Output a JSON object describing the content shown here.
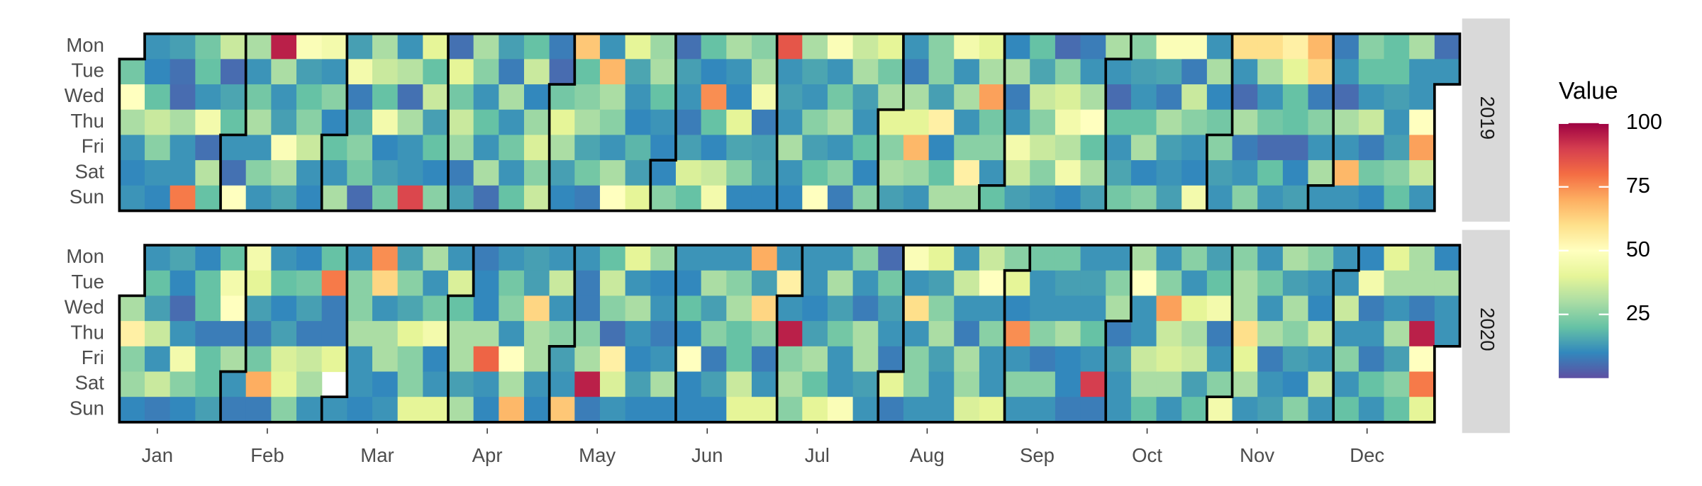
{
  "chart_data": {
    "type": "calendar-heatmap",
    "weekdays": [
      "Mon",
      "Tue",
      "Wed",
      "Thu",
      "Fri",
      "Sat",
      "Sun"
    ],
    "months": [
      "Jan",
      "Feb",
      "Mar",
      "Apr",
      "May",
      "Jun",
      "Jul",
      "Aug",
      "Sep",
      "Oct",
      "Nov",
      "Dec"
    ],
    "legend_title": "Value",
    "legend_lim": [
      0,
      100
    ],
    "legend_ticks": [
      25,
      50,
      75,
      100
    ],
    "colors": [
      "#5E4FA2",
      "#3288BD",
      "#66C2A5",
      "#ABDDA4",
      "#E6F598",
      "#FFFFBF",
      "#FEE08B",
      "#FDAE61",
      "#F46D43",
      "#D53E4F",
      "#9E0142"
    ],
    "series": [
      {
        "name": "2019",
        "values": [
          22,
          50,
          30,
          12,
          10,
          12,
          12,
          10,
          20,
          35,
          25,
          12,
          10,
          14,
          6,
          5,
          30,
          12,
          12,
          78,
          22,
          20,
          12,
          45,
          6,
          32,
          20,
          35,
          5,
          15,
          20,
          12,
          6,
          50,
          30,
          12,
          22,
          30,
          12,
          25,
          12,
          95,
          30,
          12,
          14,
          48,
          30,
          15,
          48,
          14,
          20,
          25,
          35,
          12,
          10,
          45,
          12,
          25,
          10,
          20,
          12,
          30,
          14,
          45,
          8,
          18,
          25,
          22,
          5,
          30,
          35,
          20,
          45,
          10,
          14,
          22,
          12,
          32,
          6,
          30,
          12,
          12,
          88,
          40,
          20,
          35,
          14,
          20,
          10,
          25,
          6,
          40,
          22,
          35,
          28,
          8,
          14,
          30,
          25,
          12,
          20,
          12,
          30,
          6,
          14,
          8,
          30,
          12,
          22,
          12,
          20,
          20,
          35,
          10,
          28,
          38,
          25,
          35,
          8,
          5,
          22,
          40,
          30,
          14,
          10,
          65,
          20,
          25,
          30,
          15,
          22,
          8,
          12,
          68,
          30,
          25,
          12,
          30,
          50,
          40,
          15,
          12,
          10,
          18,
          14,
          40,
          28,
          30,
          20,
          12,
          10,
          10,
          25,
          6,
          14,
          12,
          8,
          14,
          38,
          20,
          20,
          10,
          75,
          20,
          10,
          35,
          45,
          30,
          12,
          10,
          40,
          15,
          25,
          10,
          25,
          30,
          45,
          8,
          14,
          15,
          10,
          85,
          12,
          14,
          12,
          30,
          12,
          10,
          30,
          15,
          12,
          25,
          14,
          20,
          50,
          48,
          12,
          22,
          30,
          12,
          25,
          8,
          35,
          30,
          14,
          12,
          20,
          10,
          25,
          40,
          22,
          30,
          40,
          25,
          30,
          14,
          12,
          8,
          30,
          40,
          68,
          28,
          12,
          25,
          25,
          14,
          55,
          10,
          20,
          30,
          45,
          12,
          30,
          12,
          25,
          55,
          30,
          40,
          30,
          72,
          22,
          25,
          12,
          20,
          10,
          30,
          8,
          12,
          45,
          35,
          14,
          20,
          15,
          35,
          25,
          35,
          25,
          12,
          5,
          25,
          38,
          45,
          32,
          45,
          10,
          8,
          12,
          30,
          50,
          20,
          30,
          14,
          30,
          12,
          5,
          20,
          12,
          15,
          22,
          25,
          14,
          12,
          20,
          30,
          10,
          25,
          48,
          15,
          8,
          30,
          14,
          12,
          14,
          48,
          8,
          35,
          25,
          12,
          10,
          45,
          12,
          30,
          10,
          22,
          25,
          14,
          12,
          60,
          12,
          5,
          30,
          8,
          12,
          25,
          60,
          30,
          12,
          22,
          5,
          20,
          12,
          55,
          40,
          20,
          20,
          5,
          10,
          14,
          68,
          62,
          8,
          25,
          12,
          30,
          12,
          8,
          12,
          5,
          30,
          12,
          68,
          12,
          25,
          20,
          12,
          35,
          8,
          22,
          10,
          20,
          20,
          14,
          12,
          14,
          25,
          20,
          30,
          12,
          12,
          50,
          72,
          35,
          12,
          6,
          12
        ]
      },
      {
        "name": "2020",
        "values": [
          30,
          55,
          25,
          28,
          10,
          12,
          20,
          14,
          35,
          12,
          35,
          8,
          15,
          10,
          5,
          12,
          45,
          25,
          10,
          10,
          20,
          20,
          8,
          20,
          20,
          14,
          20,
          45,
          50,
          8,
          30,
          12,
          8,
          45,
          40,
          14,
          8,
          22,
          70,
          8,
          12,
          20,
          10,
          14,
          38,
          40,
          25,
          10,
          22,
          14,
          8,
          35,
          30,
          12,
          20,
          78,
          8,
          8,
          40,
          null,
          12,
          12,
          25,
          25,
          30,
          12,
          12,
          10,
          75,
          62,
          12,
          30,
          30,
          10,
          12,
          14,
          25,
          15,
          40,
          25,
          25,
          40,
          30,
          12,
          22,
          45,
          10,
          12,
          40,
          12,
          38,
          20,
          30,
          30,
          14,
          30,
          8,
          10,
          10,
          30,
          82,
          12,
          10,
          12,
          22,
          25,
          12,
          50,
          30,
          68,
          14,
          14,
          62,
          30,
          30,
          12,
          10,
          12,
          35,
          12,
          25,
          14,
          12,
          65,
          12,
          8,
          8,
          25,
          30,
          95,
          8,
          20,
          35,
          25,
          6,
          55,
          38,
          12,
          40,
          12,
          30,
          12,
          10,
          14,
          10,
          28,
          10,
          12,
          8,
          12,
          30,
          10,
          12,
          10,
          20,
          10,
          50,
          10,
          10,
          12,
          30,
          14,
          25,
          8,
          14,
          10,
          12,
          25,
          30,
          20,
          20,
          35,
          40,
          70,
          14,
          62,
          25,
          8,
          12,
          40,
          12,
          55,
          12,
          95,
          25,
          30,
          25,
          12,
          12,
          10,
          14,
          30,
          20,
          40,
          12,
          30,
          14,
          22,
          12,
          12,
          48,
          25,
          12,
          8,
          30,
          30,
          14,
          12,
          5,
          22,
          14,
          12,
          8,
          40,
          8,
          48,
          12,
          60,
          12,
          25,
          25,
          12,
          40,
          14,
          25,
          30,
          14,
          12,
          12,
          12,
          35,
          12,
          8,
          30,
          28,
          38,
          35,
          50,
          12,
          25,
          12,
          12,
          40,
          25,
          40,
          10,
          75,
          12,
          25,
          12,
          22,
          12,
          12,
          25,
          8,
          25,
          12,
          22,
          14,
          12,
          30,
          10,
          10,
          8,
          12,
          14,
          12,
          20,
          12,
          90,
          8,
          12,
          25,
          30,
          8,
          14,
          12,
          12,
          30,
          50,
          12,
          12,
          35,
          30,
          20,
          12,
          25,
          72,
          35,
          38,
          30,
          12,
          25,
          12,
          40,
          30,
          35,
          14,
          20,
          14,
          20,
          45,
          8,
          12,
          25,
          45,
          25,
          30,
          30,
          60,
          40,
          30,
          12,
          12,
          22,
          12,
          30,
          8,
          12,
          14,
          30,
          14,
          30,
          25,
          14,
          10,
          25,
          25,
          12,
          10,
          35,
          12,
          35,
          12,
          12,
          12,
          35,
          12,
          25,
          12,
          20,
          10,
          45,
          8,
          12,
          8,
          20,
          12,
          40,
          30,
          12,
          30,
          14,
          25,
          20,
          30,
          30,
          8,
          95,
          50,
          78,
          40,
          10,
          30,
          12,
          12
        ]
      }
    ]
  }
}
